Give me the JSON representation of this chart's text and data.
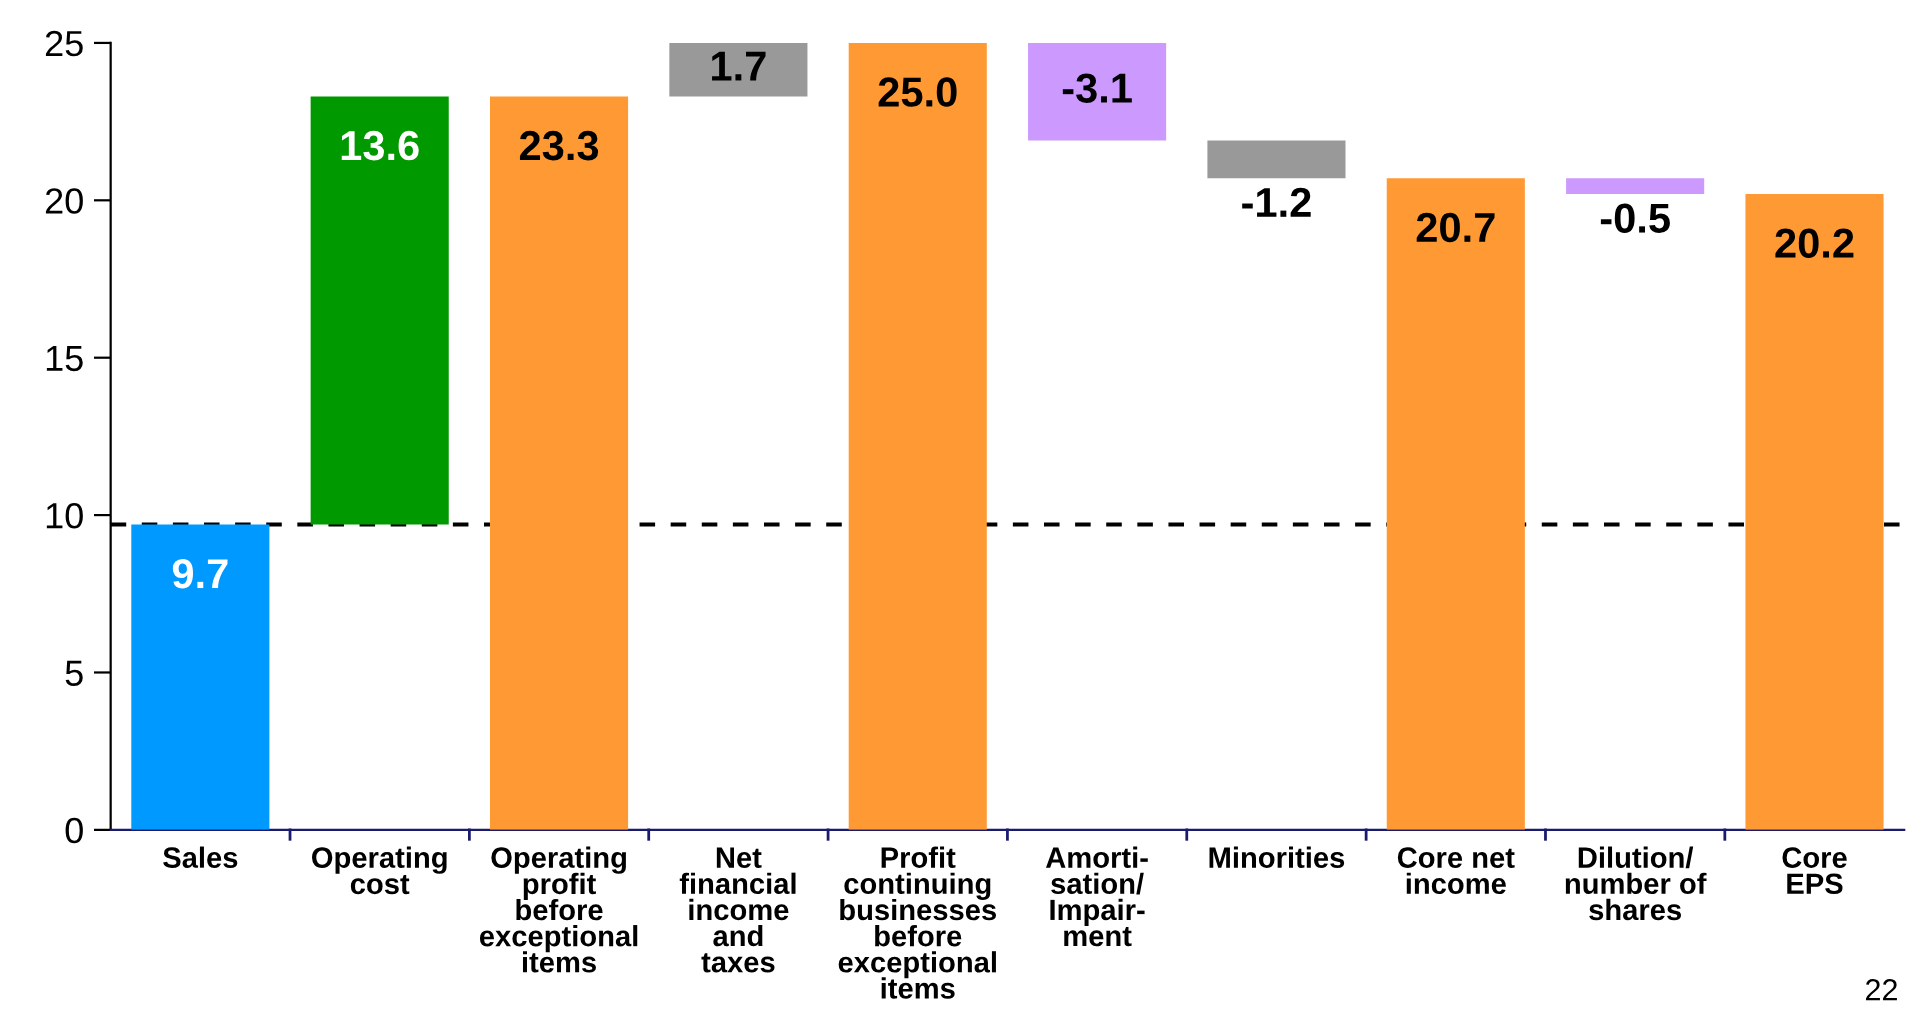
{
  "chart_data": {
    "type": "bar",
    "categories": [
      "Sales",
      "Operating\ncost",
      "Operating\nprofit\nbefore\nexceptional\nitems",
      "Net\nfinancial\nincome\nand\ntaxes",
      "Profit\ncontinuing\nbusinesses\nbefore\nexceptional\nitems",
      "Amorti-\nsation/\nImpair-\nment",
      "Minorities",
      "Core net\nincome",
      "Dilution/\nnumber of\nshares",
      "Core\nEPS"
    ],
    "values": [
      9.7,
      13.6,
      23.3,
      1.7,
      25.0,
      -3.1,
      -1.2,
      20.7,
      -0.5,
      20.2
    ],
    "base": [
      0,
      9.7,
      0,
      23.3,
      0,
      25.0,
      21.9,
      0,
      20.7,
      0
    ],
    "colors": [
      "#0099ff",
      "#009900",
      "#ff9933",
      "#999999",
      "#ff9933",
      "#cc99ff",
      "#999999",
      "#ff9933",
      "#cc99ff",
      "#ff9933"
    ],
    "value_labels": [
      "9.7",
      "13.6",
      "23.3",
      "1.7",
      "25.0",
      "-3.1",
      "-1.2",
      "20.7",
      "-0.5",
      "20.2"
    ],
    "ylim": [
      0,
      25
    ],
    "yticks": [
      0,
      5,
      10,
      15,
      20,
      25
    ],
    "grid": false,
    "legend": false,
    "ref_lines": [
      {
        "axis": "y",
        "value": 9.7,
        "label": null,
        "color": "#000000",
        "line_style": "dashed"
      }
    ],
    "annotations": [
      "22"
    ]
  }
}
